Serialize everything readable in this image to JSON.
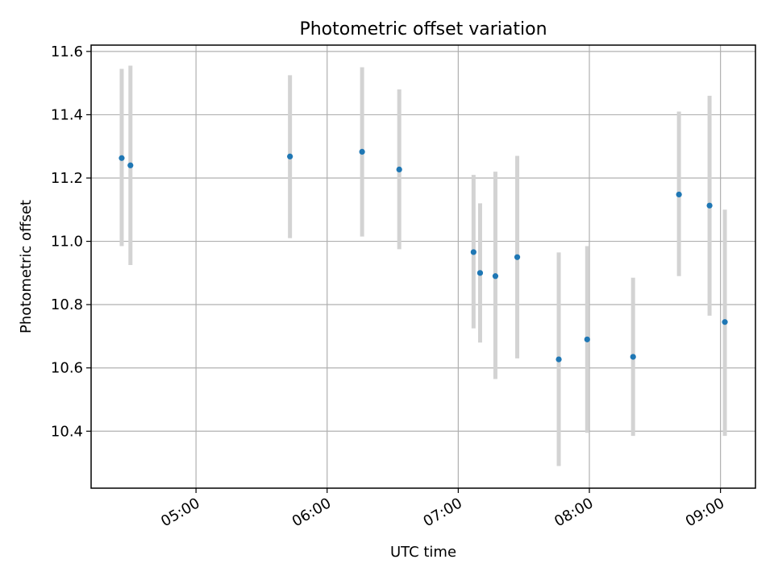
{
  "chart_data": {
    "type": "scatter",
    "title": "Photometric offset variation",
    "xlabel": "UTC time",
    "ylabel": "Photometric offset",
    "xlim": [
      "04:12",
      "09:16"
    ],
    "ylim": [
      10.22,
      11.62
    ],
    "x_ticks": [
      "05:00",
      "06:00",
      "07:00",
      "08:00",
      "09:00"
    ],
    "y_ticks": [
      "10.4",
      "10.6",
      "10.8",
      "11.0",
      "11.2",
      "11.4",
      "11.6"
    ],
    "grid": true,
    "colors": {
      "points": "#1f77b4",
      "error_bars": "#d3d3d3"
    },
    "points": [
      {
        "x": "04:26",
        "y": 11.263,
        "y_low": 10.985,
        "y_high": 11.545
      },
      {
        "x": "04:30",
        "y": 11.24,
        "y_low": 10.925,
        "y_high": 11.555
      },
      {
        "x": "05:43",
        "y": 11.268,
        "y_low": 11.01,
        "y_high": 11.525
      },
      {
        "x": "06:16",
        "y": 11.283,
        "y_low": 11.015,
        "y_high": 11.55
      },
      {
        "x": "06:33",
        "y": 11.227,
        "y_low": 10.975,
        "y_high": 11.48
      },
      {
        "x": "07:07",
        "y": 10.966,
        "y_low": 10.725,
        "y_high": 11.21
      },
      {
        "x": "07:10",
        "y": 10.9,
        "y_low": 10.68,
        "y_high": 11.12
      },
      {
        "x": "07:17",
        "y": 10.89,
        "y_low": 10.565,
        "y_high": 11.22
      },
      {
        "x": "07:27",
        "y": 10.95,
        "y_low": 10.63,
        "y_high": 11.27
      },
      {
        "x": "07:46",
        "y": 10.627,
        "y_low": 10.29,
        "y_high": 10.965
      },
      {
        "x": "07:59",
        "y": 10.69,
        "y_low": 10.395,
        "y_high": 10.985
      },
      {
        "x": "08:20",
        "y": 10.635,
        "y_low": 10.385,
        "y_high": 10.885
      },
      {
        "x": "08:41",
        "y": 11.148,
        "y_low": 10.89,
        "y_high": 11.41
      },
      {
        "x": "08:55",
        "y": 11.113,
        "y_low": 10.765,
        "y_high": 11.46
      },
      {
        "x": "09:02",
        "y": 10.745,
        "y_low": 10.385,
        "y_high": 11.1
      }
    ]
  }
}
